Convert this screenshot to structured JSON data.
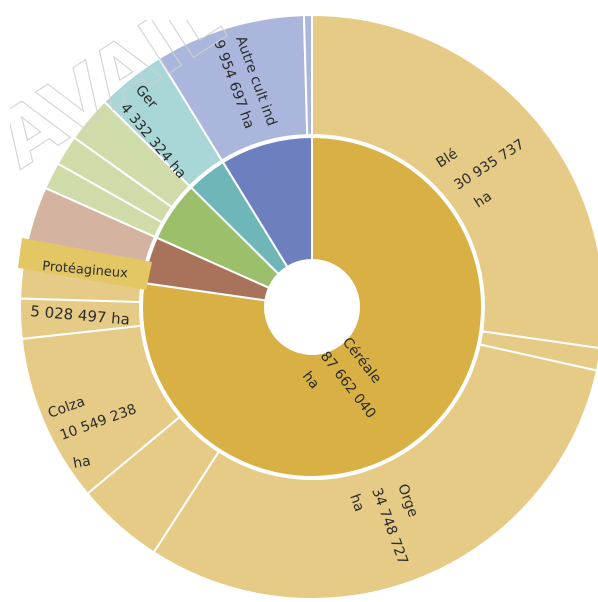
{
  "chart_data": {
    "type": "sunburst",
    "unit": "ha",
    "inner_ring": [
      {
        "name": "Céréale",
        "value": 87662040,
        "color": "#d8b044",
        "label": "Céréale",
        "value_label": "87 662 040",
        "unit_label": "ha"
      },
      {
        "name": "Protéagineux",
        "value": 5028497,
        "color": "#a8735a"
      },
      {
        "name": "",
        "value": 6500000,
        "color": "#9cbf6c"
      },
      {
        "name": "Ger",
        "value": 4332324,
        "color": "#6fb6b9"
      },
      {
        "name": "Autre cult ind",
        "value": 9954697,
        "color": "#6e7fc0"
      }
    ],
    "outer_ring": [
      {
        "name": "Blé",
        "value": 30935737,
        "color": "#e5cb85",
        "label": "Blé",
        "value_label": "30 935 737",
        "unit_label": "ha"
      },
      {
        "name": "",
        "value": 1400000,
        "color": "#e5cb85"
      },
      {
        "name": "Orge",
        "value": 34748727,
        "color": "#e5cb85",
        "label": "Orge",
        "value_label": "34 748 727",
        "unit_label": "ha"
      },
      {
        "name": "",
        "value": 5500000,
        "color": "#e5cb85"
      },
      {
        "name": "Colza",
        "value": 10549238,
        "color": "#e5cb85",
        "label": "Colza",
        "value_label": "10 549 238",
        "unit_label": "ha"
      },
      {
        "name": "",
        "value": 2500000,
        "color": "#e5cb85"
      },
      {
        "name": "",
        "value": 2028338,
        "color": "#e5cb85"
      },
      {
        "name": "Protéagineux",
        "value": 5028497,
        "color": "#d4b4a0",
        "label": "Protéagineux",
        "value_label": "5 028 497 ha"
      },
      {
        "name": "",
        "value": 1700000,
        "color": "#cfdcaa"
      },
      {
        "name": "",
        "value": 1900000,
        "color": "#cfdcaa"
      },
      {
        "name": "",
        "value": 2900000,
        "color": "#cfdcaa"
      },
      {
        "name": "Ger",
        "value": 4332324,
        "color": "#a9d6d7",
        "label": "Ger",
        "value_label": "4 332 324 ha"
      },
      {
        "name": "Autre cult ind",
        "value": 9454697,
        "color": "#aab6dc",
        "label": "Autre cult ind",
        "value_label": "9 954 697 ha"
      },
      {
        "name": "",
        "value": 500000,
        "color": "#aab6dc"
      }
    ],
    "watermark_text": "AVAIL"
  }
}
